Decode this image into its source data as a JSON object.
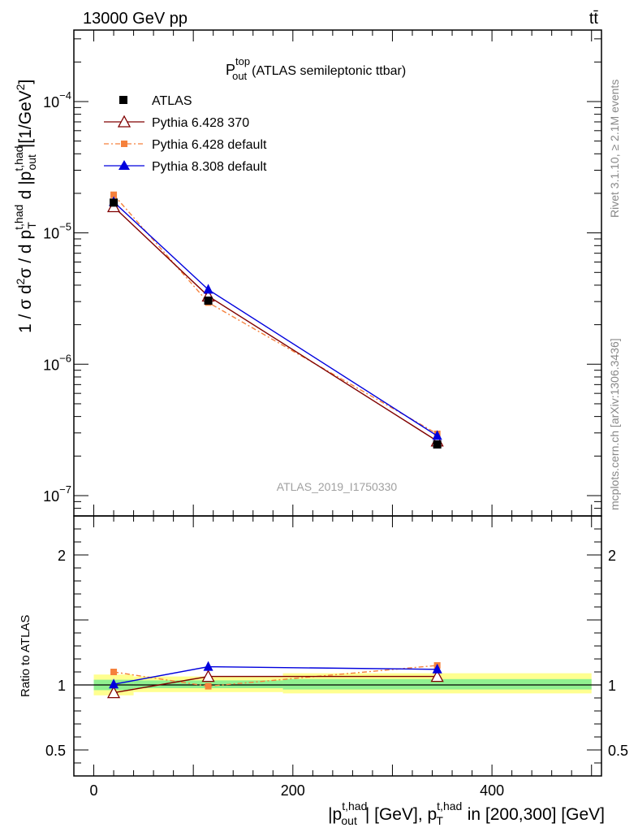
{
  "header": {
    "left": "13000 GeV pp",
    "right": "tt̄"
  },
  "side_text": {
    "rivet": "Rivet 3.1.10, ≥ 2.1M events",
    "mcplots": "mcplots.cern.ch [arXiv:1306.3436]"
  },
  "plot_title": {
    "main": "P",
    "sup": "top",
    "sub": "out",
    "rest": "(ATLAS semileptonic ttbar)"
  },
  "analysis_label": "ATLAS_2019_I1750330",
  "axis_labels": {
    "y_main": "1 / σ d²σ / d p_T^{t,had} d |p_out^{t,had}| [1/GeV²]",
    "y_ratio": "Ratio to ATLAS",
    "x": "|p_out^{t,had}| [GeV], p_T^{t,had} in [200,300] [GeV]"
  },
  "chart_data": {
    "type": "line",
    "x_bins": [
      [
        0,
        40
      ],
      [
        40,
        190
      ],
      [
        190,
        500
      ]
    ],
    "x_points": [
      20,
      115,
      345
    ],
    "xlim": [
      -20,
      510
    ],
    "x_ticks": [
      0,
      200,
      400
    ],
    "main": {
      "yscale": "log",
      "ylim": [
        7e-08,
        0.00035
      ],
      "y_tick_labels": [
        {
          "value": 1e-07,
          "base": "10",
          "exp": "−7"
        },
        {
          "value": 1e-06,
          "base": "10",
          "exp": "−6"
        },
        {
          "value": 1e-05,
          "base": "10",
          "exp": "−5"
        },
        {
          "value": 0.0001,
          "base": "10",
          "exp": "−4"
        }
      ],
      "series": [
        {
          "name": "ATLAS",
          "color": "#000000",
          "marker": "square",
          "line": "none",
          "values": [
            1.7e-05,
            3.05e-06,
            2.45e-07
          ]
        },
        {
          "name": "Pythia 6.428 370",
          "color": "#800000",
          "marker": "triangle-open",
          "line": "solid",
          "values": [
            1.58e-05,
            3.3e-06,
            2.6e-07
          ]
        },
        {
          "name": "Pythia 6.428 default",
          "color": "#f5813c",
          "marker": "square-small",
          "line": "dashdot",
          "values": [
            1.95e-05,
            2.95e-06,
            2.95e-07
          ]
        },
        {
          "name": "Pythia 8.308 default",
          "color": "#0000dd",
          "marker": "triangle",
          "line": "solid",
          "values": [
            1.72e-05,
            3.7e-06,
            2.85e-07
          ]
        }
      ]
    },
    "ratio": {
      "ylim": [
        0.3,
        2.3
      ],
      "y_ticks": [
        0.5,
        1,
        2
      ],
      "y_tick_labels": [
        "0.5",
        "1",
        "2"
      ],
      "band_inner_color": "#90f090",
      "band_outer_color": "#ffff90",
      "bands": [
        {
          "bin": [
            0,
            40
          ],
          "inner": [
            0.96,
            1.04
          ],
          "outer": [
            0.92,
            1.08
          ]
        },
        {
          "bin": [
            40,
            190
          ],
          "inner": [
            0.975,
            1.035
          ],
          "outer": [
            0.945,
            1.065
          ]
        },
        {
          "bin": [
            190,
            500
          ],
          "inner": [
            0.965,
            1.045
          ],
          "outer": [
            0.935,
            1.09
          ]
        }
      ],
      "series": [
        {
          "name": "Pythia 6.428 370",
          "color": "#800000",
          "values": [
            0.94,
            1.065,
            1.065
          ]
        },
        {
          "name": "Pythia 6.428 default",
          "color": "#f5813c",
          "values": [
            1.1,
            0.99,
            1.15
          ]
        },
        {
          "name": "Pythia 8.308 default",
          "color": "#0000dd",
          "values": [
            1.005,
            1.14,
            1.12
          ]
        }
      ]
    }
  }
}
